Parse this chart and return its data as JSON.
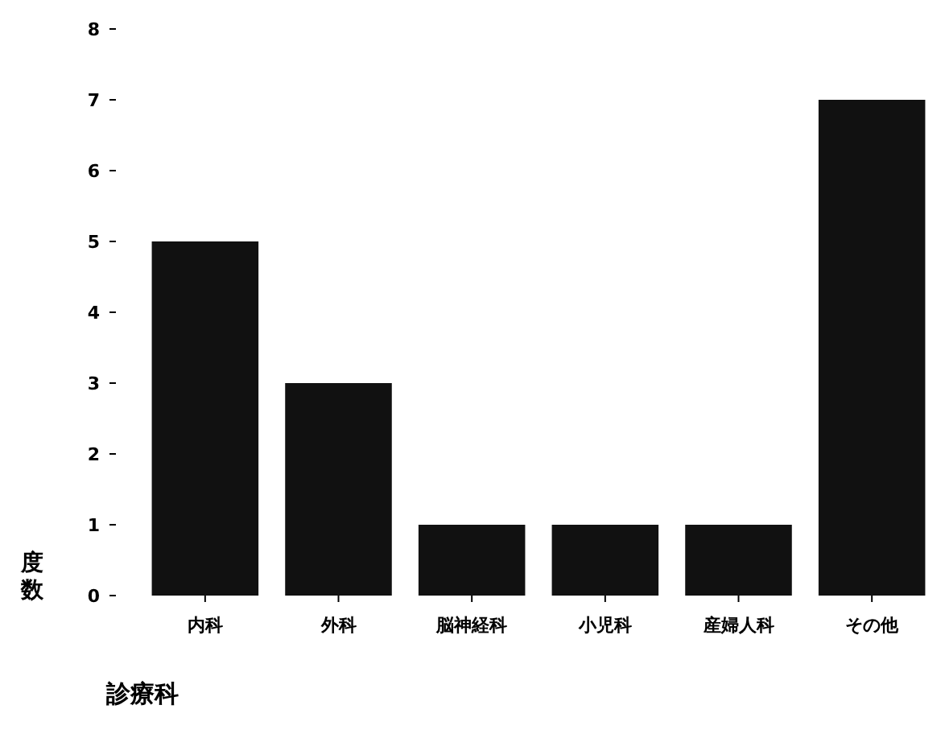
{
  "chart_data": {
    "type": "bar",
    "xlabel": "診療科",
    "ylabel": "度数",
    "categories": [
      "内科",
      "外科",
      "脳神経科",
      "小児科",
      "産婦人科",
      "その他"
    ],
    "values": [
      5,
      3,
      1,
      1,
      1,
      7
    ],
    "color": "#111111",
    "ylim": [
      0,
      8
    ],
    "yticks": [
      0,
      1,
      2,
      3,
      4,
      5,
      6,
      7,
      8
    ],
    "grid": false
  }
}
